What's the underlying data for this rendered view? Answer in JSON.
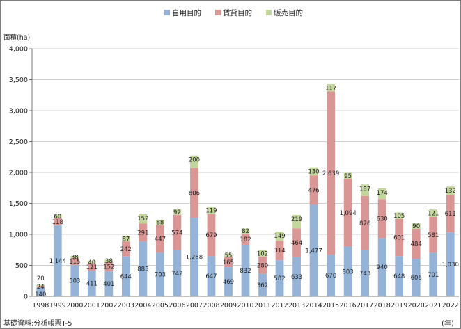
{
  "chart_data": {
    "type": "bar",
    "stacked": true,
    "ylabel": "面積(ha)",
    "xlabel": "(年)",
    "source_note": "基礎資料:分析帳票T-5",
    "ylim": [
      0,
      4000
    ],
    "yticks": [
      0,
      500,
      1000,
      1500,
      2000,
      2500,
      3000,
      3500,
      4000
    ],
    "ytick_labels": [
      "0",
      "500",
      "1,000",
      "1,500",
      "2,000",
      "2,500",
      "3,000",
      "3,500",
      "4,000"
    ],
    "grid": true,
    "legend_position": "top-center",
    "categories": [
      "1998",
      "1999",
      "2000",
      "2001",
      "2002",
      "2003",
      "2004",
      "2005",
      "2006",
      "2007",
      "2008",
      "2009",
      "2010",
      "2011",
      "2012",
      "2013",
      "2014",
      "2015",
      "2016",
      "2017",
      "2018",
      "2019",
      "2020",
      "2021",
      "2022"
    ],
    "series": [
      {
        "name": "自用目的",
        "color": "#95b3d7",
        "values": [
          140,
          1144,
          503,
          411,
          401,
          644,
          883,
          703,
          742,
          1268,
          647,
          469,
          832,
          362,
          582,
          633,
          1477,
          670,
          803,
          743,
          940,
          648,
          606,
          701,
          1030
        ],
        "labels": [
          "140",
          "1,144",
          "503",
          "411",
          "401",
          "644",
          "883",
          "703",
          "742",
          "1,268",
          "647",
          "469",
          "832",
          "362",
          "582",
          "633",
          "1,477",
          "670",
          "803",
          "743",
          "940",
          "648",
          "606",
          "701",
          "1,030"
        ]
      },
      {
        "name": "賃貸目的",
        "color": "#d99694",
        "values": [
          24,
          118,
          115,
          121,
          152,
          242,
          291,
          447,
          574,
          806,
          679,
          165,
          182,
          280,
          314,
          464,
          476,
          2639,
          1094,
          876,
          630,
          601,
          484,
          581,
          611
        ],
        "labels": [
          "24",
          "118",
          "115",
          "121",
          "152",
          "242",
          "291",
          "447",
          "574",
          "806",
          "679",
          "165",
          "182",
          "280",
          "314",
          "464",
          "476",
          "2,639",
          "1,094",
          "876",
          "630",
          "601",
          "484",
          "581",
          "611"
        ]
      },
      {
        "name": "販売目的",
        "color": "#c3d69b",
        "values": [
          20,
          60,
          38,
          40,
          38,
          87,
          152,
          88,
          92,
          200,
          119,
          55,
          82,
          102,
          149,
          219,
          130,
          117,
          95,
          187,
          174,
          105,
          90,
          121,
          132
        ],
        "labels": [
          "20",
          "60",
          "38",
          "40",
          "38",
          "87",
          "152",
          "88",
          "92",
          "200",
          "119",
          "55",
          "82",
          "102",
          "149",
          "219",
          "130",
          "117",
          "95",
          "187",
          "174",
          "105",
          "90",
          "121",
          "132"
        ]
      }
    ]
  }
}
